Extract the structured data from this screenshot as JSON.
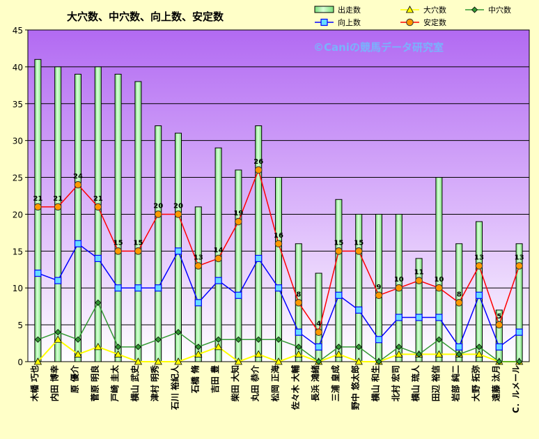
{
  "chart_data": {
    "type": "bar",
    "title": "大穴数、中穴数、向上数、安定数",
    "watermark": "©Caniの競馬データ研究室",
    "ylim": [
      0,
      45
    ],
    "yticks": [
      0,
      5,
      10,
      15,
      20,
      25,
      30,
      35,
      40,
      45
    ],
    "grid": true,
    "legend_position": "top-right",
    "categories": [
      "木幡 巧也",
      "内田 博幸",
      "原 優介",
      "菅原 明良",
      "戸崎 圭太",
      "横山 武史",
      "津村 明秀",
      "石川 裕紀人",
      "石橋 脩",
      "吉田 豊",
      "柴田 大知",
      "丸田 恭介",
      "松岡 正海",
      "佐々木 大輔",
      "長浜 鴻緒",
      "三浦 皇成",
      "野中 悠太郎",
      "横山 和生",
      "北村 宏司",
      "横山 琉人",
      "田辺 裕信",
      "岩部 純二",
      "大野 拓弥",
      "遠藤 汰月",
      "C．ルメール"
    ],
    "series": [
      {
        "name": "出走数",
        "kind": "bar",
        "color": "#b4ffb4",
        "values": [
          41,
          40,
          39,
          40,
          39,
          38,
          32,
          31,
          21,
          29,
          26,
          32,
          25,
          16,
          12,
          22,
          20,
          20,
          20,
          14,
          25,
          16,
          19,
          7,
          16
        ]
      },
      {
        "name": "大穴数",
        "kind": "line",
        "color": "#ffff00",
        "marker": "triangle",
        "values": [
          0,
          3,
          1,
          2,
          1,
          0,
          0,
          0,
          1,
          2,
          0,
          1,
          0,
          1,
          0,
          1,
          0,
          0,
          1,
          1,
          1,
          1,
          1,
          0,
          0
        ]
      },
      {
        "name": "中穴数",
        "kind": "line",
        "color": "#339933",
        "marker": "diamond",
        "values": [
          3,
          4,
          3,
          8,
          2,
          2,
          3,
          4,
          2,
          3,
          3,
          3,
          3,
          2,
          0,
          2,
          2,
          0,
          2,
          1,
          3,
          1,
          2,
          0,
          0
        ]
      },
      {
        "name": "向上数",
        "kind": "line",
        "color": "#0000ff",
        "marker": "square",
        "values": [
          12,
          11,
          16,
          14,
          10,
          10,
          10,
          15,
          8,
          11,
          9,
          14,
          10,
          4,
          2,
          9,
          7,
          3,
          6,
          6,
          6,
          2,
          9,
          2,
          4
        ]
      },
      {
        "name": "安定数",
        "kind": "line",
        "color": "#ff0000",
        "marker": "circle",
        "values": [
          21,
          21,
          24,
          21,
          15,
          15,
          20,
          20,
          13,
          14,
          19,
          26,
          16,
          8,
          4,
          15,
          15,
          9,
          10,
          11,
          10,
          8,
          13,
          5,
          13
        ]
      }
    ],
    "data_labels_series": "安定数"
  }
}
